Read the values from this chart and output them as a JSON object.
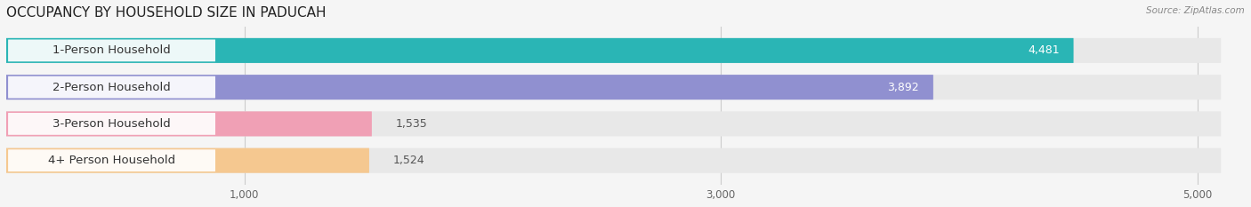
{
  "title": "OCCUPANCY BY HOUSEHOLD SIZE IN PADUCAH",
  "source": "Source: ZipAtlas.com",
  "categories": [
    "1-Person Household",
    "2-Person Household",
    "3-Person Household",
    "4+ Person Household"
  ],
  "values": [
    4481,
    3892,
    1535,
    1524
  ],
  "bar_colors": [
    "#2ab5b5",
    "#9090d0",
    "#f0a0b5",
    "#f5c890"
  ],
  "track_color": "#e8e8e8",
  "label_bg_color": "#ffffff",
  "xlim": [
    0,
    5200
  ],
  "x_max_display": 5000,
  "xticks": [
    1000,
    3000,
    5000
  ],
  "xtick_labels": [
    "1,000",
    "3,000",
    "5,000"
  ],
  "bar_height": 0.68,
  "background_color": "#f5f5f5",
  "plot_bg_color": "#f5f5f5",
  "title_fontsize": 11,
  "label_fontsize": 9.5,
  "value_fontsize": 9
}
